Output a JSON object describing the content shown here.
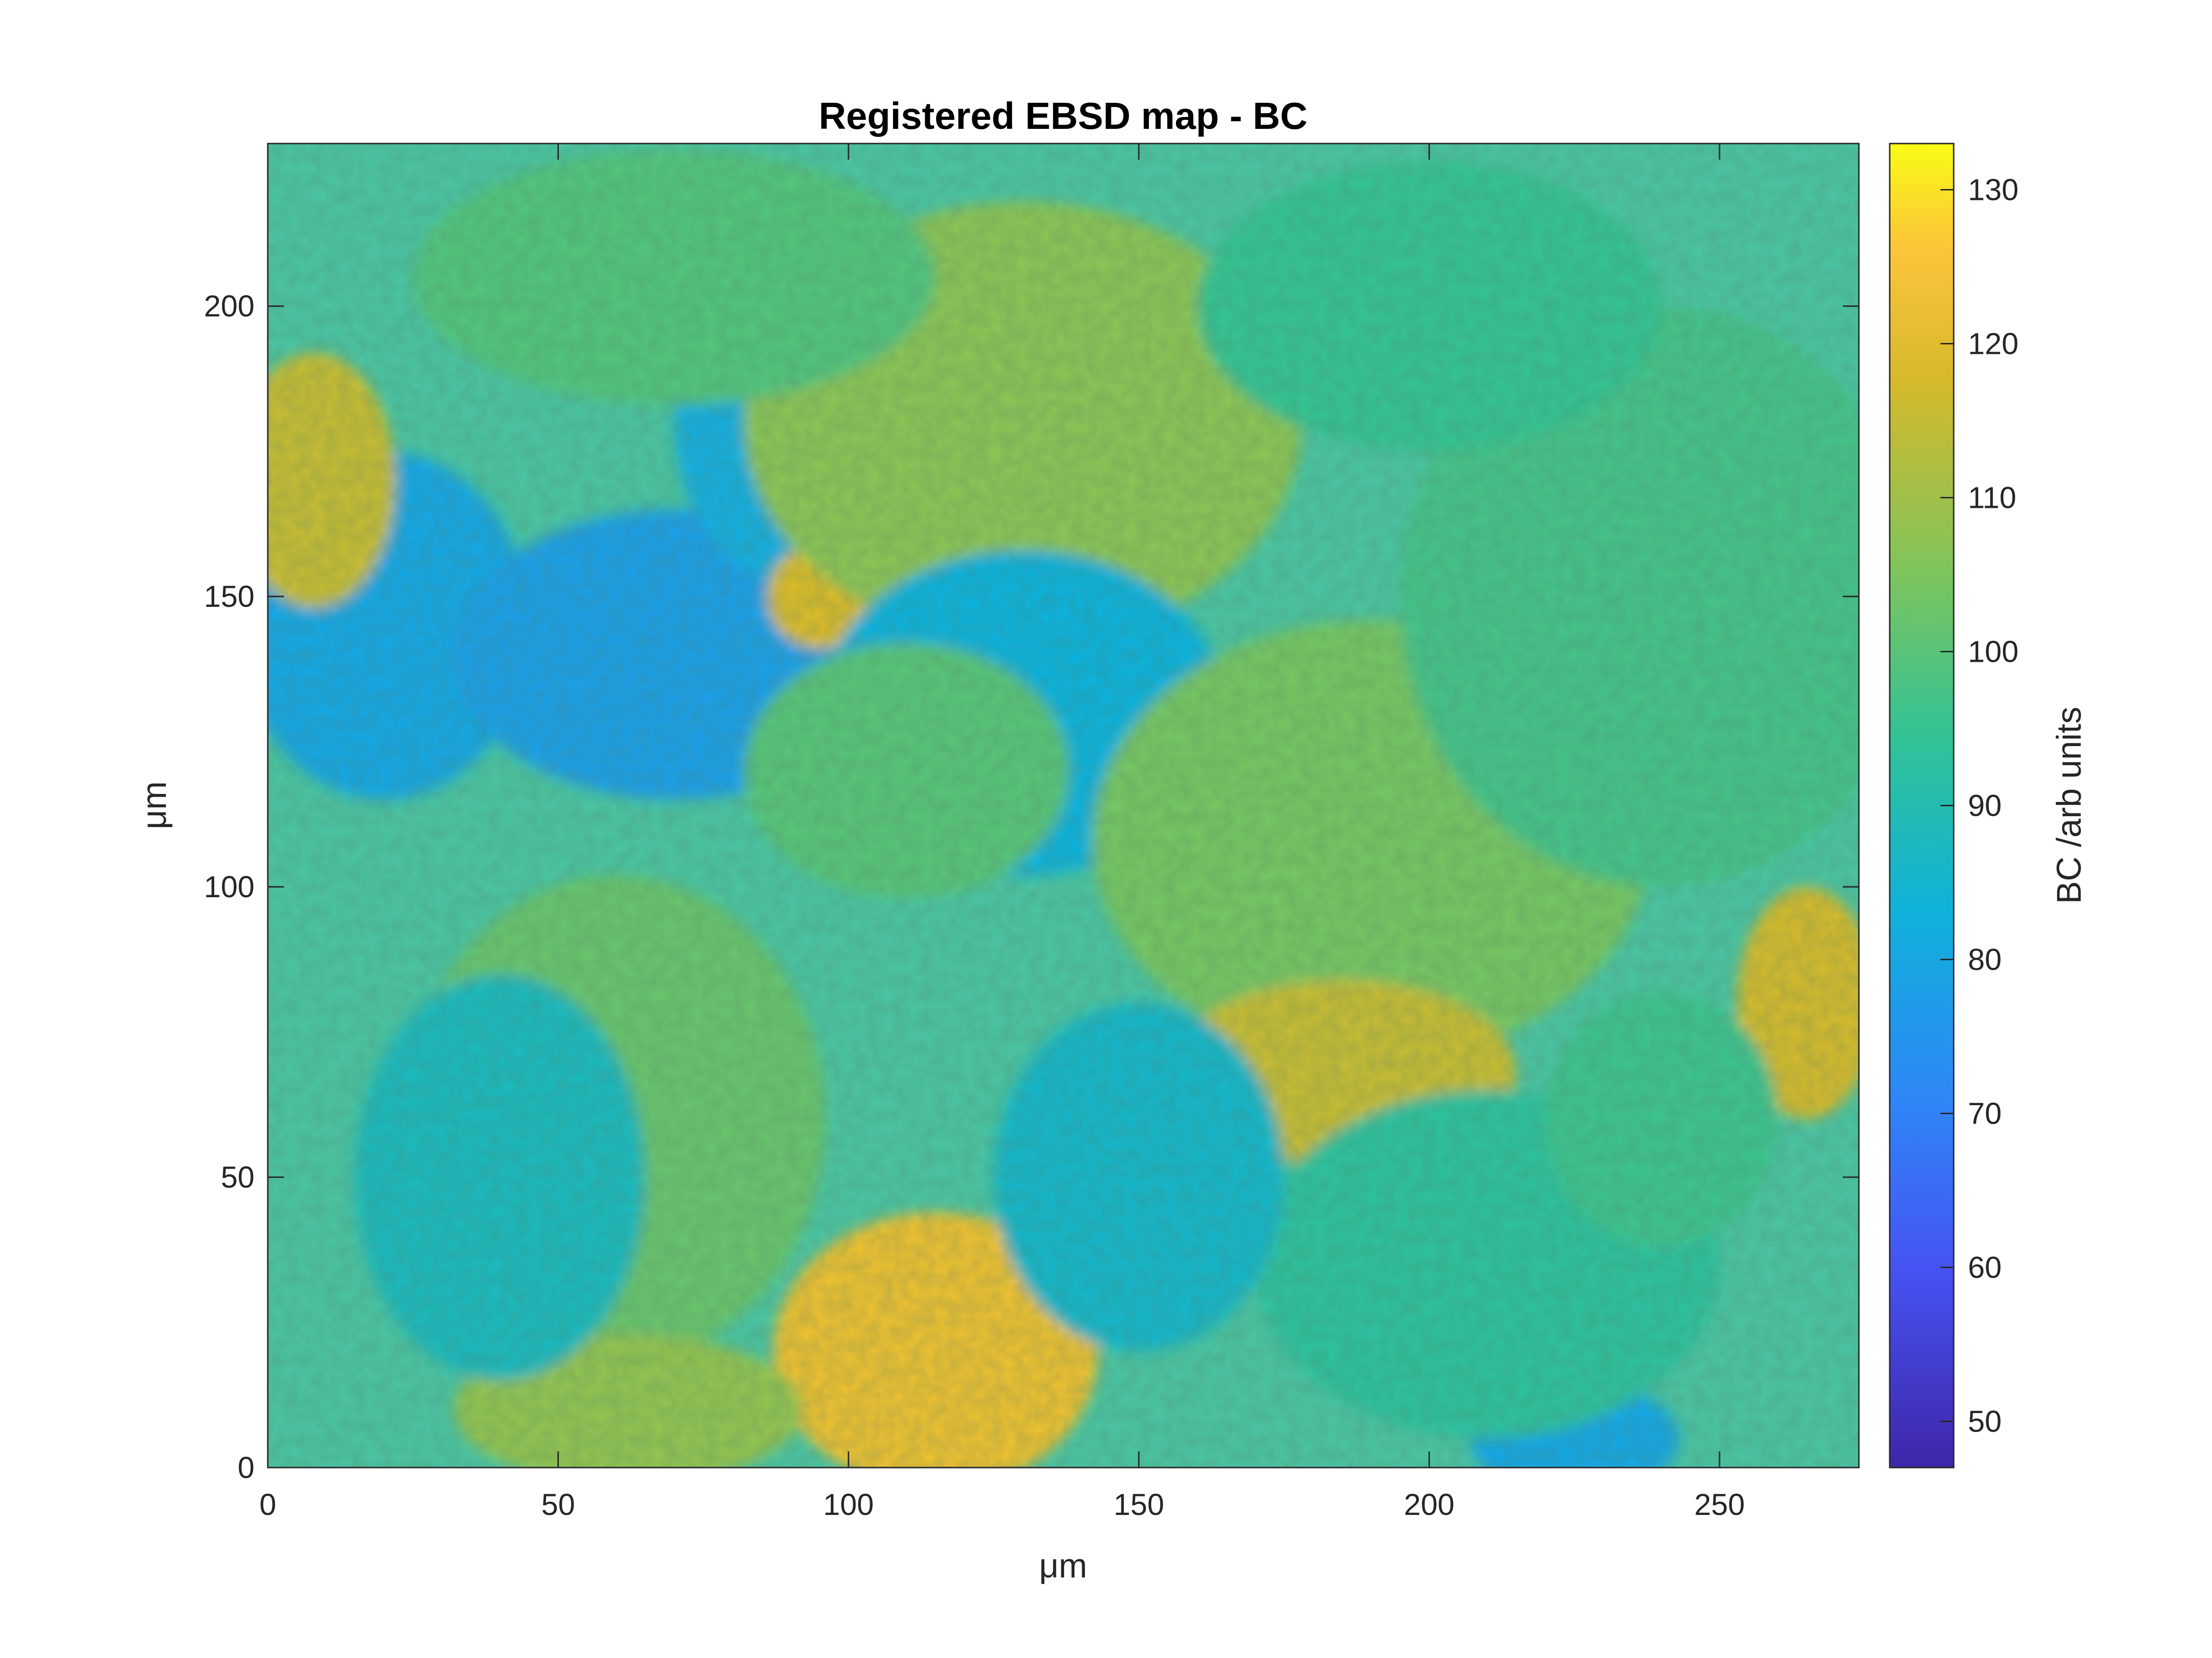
{
  "chart_data": {
    "type": "heatmap",
    "title": "Registered EBSD map - BC",
    "xlabel": "μm",
    "ylabel": "μm",
    "xlim": [
      0,
      274
    ],
    "ylim": [
      0,
      228
    ],
    "xticks": [
      0,
      50,
      100,
      150,
      200,
      250
    ],
    "yticks": [
      0,
      50,
      100,
      150,
      200
    ],
    "colorbar": {
      "label": "BC /arb units",
      "range": [
        47,
        133
      ],
      "ticks": [
        50,
        60,
        70,
        80,
        90,
        100,
        110,
        120,
        130
      ],
      "colormap": "parula"
    },
    "grid": false,
    "grains": [
      {
        "x": 20,
        "y": 145,
        "rx": 25,
        "ry": 30,
        "value": 80
      },
      {
        "x": 70,
        "y": 140,
        "rx": 38,
        "ry": 25,
        "value": 78
      },
      {
        "x": 92,
        "y": 180,
        "rx": 22,
        "ry": 28,
        "value": 82
      },
      {
        "x": 8,
        "y": 170,
        "rx": 14,
        "ry": 22,
        "value": 115
      },
      {
        "x": 95,
        "y": 150,
        "rx": 9,
        "ry": 9,
        "value": 118
      },
      {
        "x": 130,
        "y": 180,
        "rx": 48,
        "ry": 38,
        "value": 107
      },
      {
        "x": 130,
        "y": 130,
        "rx": 35,
        "ry": 28,
        "value": 83
      },
      {
        "x": 110,
        "y": 120,
        "rx": 28,
        "ry": 22,
        "value": 100
      },
      {
        "x": 190,
        "y": 108,
        "rx": 48,
        "ry": 38,
        "value": 104
      },
      {
        "x": 185,
        "y": 68,
        "rx": 30,
        "ry": 16,
        "value": 115
      },
      {
        "x": 265,
        "y": 80,
        "rx": 12,
        "ry": 20,
        "value": 117
      },
      {
        "x": 115,
        "y": 20,
        "rx": 28,
        "ry": 24,
        "value": 122
      },
      {
        "x": 60,
        "y": 60,
        "rx": 36,
        "ry": 42,
        "value": 102
      },
      {
        "x": 62,
        "y": 10,
        "rx": 30,
        "ry": 13,
        "value": 108
      },
      {
        "x": 40,
        "y": 50,
        "rx": 25,
        "ry": 35,
        "value": 88
      },
      {
        "x": 225,
        "y": 5,
        "rx": 18,
        "ry": 10,
        "value": 80
      },
      {
        "x": 210,
        "y": 35,
        "rx": 40,
        "ry": 30,
        "value": 93
      },
      {
        "x": 240,
        "y": 150,
        "rx": 45,
        "ry": 50,
        "value": 97
      },
      {
        "x": 70,
        "y": 205,
        "rx": 45,
        "ry": 22,
        "value": 99
      },
      {
        "x": 200,
        "y": 200,
        "rx": 40,
        "ry": 25,
        "value": 95
      },
      {
        "x": 150,
        "y": 50,
        "rx": 25,
        "ry": 30,
        "value": 86
      },
      {
        "x": 240,
        "y": 60,
        "rx": 20,
        "ry": 22,
        "value": 96
      }
    ]
  }
}
